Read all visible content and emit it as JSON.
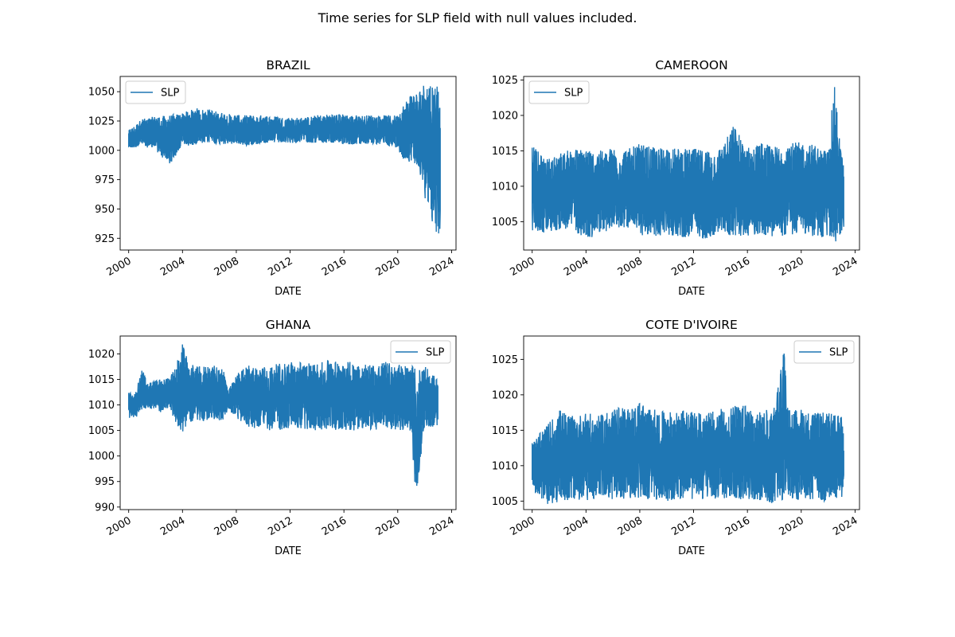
{
  "figure": {
    "suptitle": "Time series for SLP field with null values included.",
    "series_color": "#1f77b4"
  },
  "chart_data": [
    {
      "type": "line",
      "title": "BRAZIL",
      "xlabel": "DATE",
      "ylabel": "",
      "legend": {
        "entries": [
          "SLP"
        ],
        "placement": "upper left"
      },
      "x_ticks": [
        "2000",
        "2004",
        "2008",
        "2012",
        "2016",
        "2020",
        "2024"
      ],
      "y_ticks": [
        925,
        950,
        975,
        1000,
        1025,
        1050
      ],
      "xlim": [
        "1999-05-15",
        "2024-05-01"
      ],
      "ylim": [
        915,
        1063
      ],
      "series": [
        {
          "name": "SLP",
          "x": [
            "2000-01-01",
            "2001-01-01",
            "2002-01-01",
            "2003-01-01",
            "2004-01-01",
            "2005-01-01",
            "2006-01-01",
            "2007-01-01",
            "2008-01-01",
            "2009-01-01",
            "2010-01-01",
            "2011-01-01",
            "2012-01-01",
            "2013-01-01",
            "2014-01-01",
            "2015-01-01",
            "2016-01-01",
            "2017-01-01",
            "2018-01-01",
            "2019-01-01",
            "2020-01-01",
            "2020-06-01",
            "2021-01-01",
            "2021-06-01",
            "2022-01-01",
            "2022-06-01",
            "2022-09-01",
            "2023-01-01",
            "2023-03-01"
          ],
          "y_min": [
            1001,
            1004,
            1000,
            987,
            1003,
            1005,
            1006,
            1005,
            1005,
            1004,
            1006,
            1006,
            1006,
            1007,
            1006,
            1006,
            1005,
            1005,
            1005,
            1005,
            1002,
            991,
            990,
            988,
            959,
            953,
            930,
            921,
            930
          ],
          "y_max": [
            1017,
            1027,
            1029,
            1030,
            1032,
            1036,
            1035,
            1032,
            1030,
            1030,
            1030,
            1029,
            1028,
            1028,
            1030,
            1031,
            1031,
            1030,
            1030,
            1030,
            1030,
            1040,
            1049,
            1050,
            1058,
            1061,
            1060,
            1058,
            1053
          ]
        }
      ]
    },
    {
      "type": "line",
      "title": "CAMEROON",
      "xlabel": "DATE",
      "ylabel": "",
      "legend": {
        "entries": [
          "SLP"
        ],
        "placement": "upper left"
      },
      "x_ticks": [
        "2000",
        "2004",
        "2008",
        "2012",
        "2016",
        "2020",
        "2024"
      ],
      "y_ticks": [
        1005,
        1010,
        1015,
        1020,
        1025
      ],
      "xlim": [
        "1999-05-15",
        "2024-05-01"
      ],
      "ylim": [
        1001,
        1025.5
      ],
      "series": [
        {
          "name": "SLP",
          "x": [
            "2000-01-01",
            "2001-01-01",
            "2002-01-01",
            "2003-01-01",
            "2004-01-01",
            "2005-01-01",
            "2006-01-01",
            "2007-01-01",
            "2008-01-01",
            "2009-01-01",
            "2010-01-01",
            "2011-01-01",
            "2012-01-01",
            "2013-01-01",
            "2014-01-01",
            "2015-01-01",
            "2016-01-01",
            "2017-01-01",
            "2018-01-01",
            "2019-01-01",
            "2020-01-01",
            "2021-01-01",
            "2022-01-01",
            "2022-06-15",
            "2023-01-01",
            "2023-03-01"
          ],
          "y_min": [
            1003.5,
            1003.3,
            1003.8,
            1004.0,
            1002.2,
            1003.5,
            1003.8,
            1004.2,
            1003.1,
            1002.7,
            1003.2,
            1002.7,
            1002.8,
            1002.6,
            1003.5,
            1002.8,
            1003.0,
            1003.2,
            1002.9,
            1003.0,
            1003.4,
            1002.8,
            1002.6,
            1001.9,
            1003.0,
            1004.2
          ],
          "y_max": [
            1015.8,
            1013.8,
            1014.7,
            1015.3,
            1015.5,
            1015.0,
            1015.5,
            1015.2,
            1016.0,
            1015.5,
            1015.6,
            1015.3,
            1015.3,
            1015.2,
            1015.4,
            1018.7,
            1015.5,
            1016.2,
            1015.6,
            1016.2,
            1016.2,
            1015.9,
            1015.0,
            1024.6,
            1014.5,
            1013.0
          ]
        }
      ]
    },
    {
      "type": "line",
      "title": "GHANA",
      "xlabel": "DATE",
      "ylabel": "",
      "legend": {
        "entries": [
          "SLP"
        ],
        "placement": "upper right"
      },
      "x_ticks": [
        "2000",
        "2004",
        "2008",
        "2012",
        "2016",
        "2020",
        "2024"
      ],
      "y_ticks": [
        990,
        995,
        1000,
        1005,
        1010,
        1015,
        1020
      ],
      "xlim": [
        "1999-05-15",
        "2024-05-01"
      ],
      "ylim": [
        989.5,
        1023.5
      ],
      "series": [
        {
          "name": "SLP",
          "x": [
            "2000-01-01",
            "2000-06-01",
            "2001-01-01",
            "2001-06-01",
            "2002-06-01",
            "2003-01-01",
            "2003-06-01",
            "2004-01-01",
            "2004-06-01",
            "2005-01-01",
            "2006-01-01",
            "2007-01-01",
            "2007-06-01",
            "2008-03-01",
            "2009-01-01",
            "2010-01-01",
            "2011-01-01",
            "2012-01-01",
            "2013-01-01",
            "2014-01-01",
            "2015-01-01",
            "2016-01-01",
            "2017-01-01",
            "2018-01-01",
            "2019-01-01",
            "2020-01-01",
            "2021-01-01",
            "2021-05-01",
            "2022-01-01",
            "2023-01-01"
          ],
          "y_min": [
            1007.2,
            1007.5,
            1008.0,
            1009.5,
            1008.5,
            1009.5,
            1006.8,
            1004.2,
            1007.0,
            1006.5,
            1007.0,
            1007.0,
            1009.0,
            1007.0,
            1005.5,
            1005.0,
            1005.0,
            1005.5,
            1005.2,
            1005.0,
            1005.2,
            1005.0,
            1005.0,
            1005.0,
            1005.2,
            1005.0,
            1005.0,
            991.3,
            1005.5,
            1005.8
          ],
          "y_max": [
            1012.5,
            1012.0,
            1017.0,
            1014.5,
            1015.0,
            1015.5,
            1017.0,
            1022.0,
            1018.5,
            1017.5,
            1017.8,
            1017.5,
            1013.0,
            1016.5,
            1018.0,
            1017.5,
            1018.0,
            1018.5,
            1018.5,
            1018.0,
            1019.0,
            1018.5,
            1018.5,
            1018.0,
            1018.5,
            1018.0,
            1018.0,
            1017.0,
            1018.0,
            1015.0
          ]
        }
      ]
    },
    {
      "type": "line",
      "title": "COTE D'IVOIRE",
      "xlabel": "DATE",
      "ylabel": "",
      "legend": {
        "entries": [
          "SLP"
        ],
        "placement": "upper right"
      },
      "x_ticks": [
        "2000",
        "2004",
        "2008",
        "2012",
        "2016",
        "2020",
        "2024"
      ],
      "y_ticks": [
        1005,
        1010,
        1015,
        1020,
        1025
      ],
      "xlim": [
        "1999-05-15",
        "2024-05-01"
      ],
      "ylim": [
        1003.8,
        1028.3
      ],
      "series": [
        {
          "name": "SLP",
          "x": [
            "2000-01-01",
            "2001-01-01",
            "2002-01-01",
            "2003-01-01",
            "2004-01-01",
            "2005-01-01",
            "2006-01-01",
            "2007-01-01",
            "2008-01-01",
            "2009-01-01",
            "2010-01-01",
            "2011-01-01",
            "2012-01-01",
            "2013-01-01",
            "2014-01-01",
            "2015-01-01",
            "2016-01-01",
            "2017-01-01",
            "2018-01-01",
            "2018-09-15",
            "2019-01-01",
            "2020-01-01",
            "2021-01-01",
            "2022-01-01",
            "2023-01-01",
            "2023-03-01"
          ],
          "y_min": [
            1006.3,
            1004.5,
            1004.8,
            1005.2,
            1005.0,
            1005.5,
            1005.2,
            1005.0,
            1005.3,
            1005.2,
            1005.0,
            1005.3,
            1005.2,
            1005.4,
            1005.3,
            1005.0,
            1005.2,
            1005.0,
            1004.6,
            1005.0,
            1005.0,
            1005.2,
            1005.0,
            1004.7,
            1005.5,
            1006.0
          ],
          "y_max": [
            1013.3,
            1015.5,
            1018.0,
            1017.0,
            1017.5,
            1017.0,
            1018.5,
            1018.0,
            1019.0,
            1018.0,
            1017.5,
            1018.0,
            1017.5,
            1017.5,
            1018.0,
            1018.5,
            1018.5,
            1017.5,
            1018.5,
            1027.0,
            1018.0,
            1018.0,
            1017.5,
            1017.5,
            1017.0,
            1014.0
          ]
        }
      ]
    }
  ]
}
